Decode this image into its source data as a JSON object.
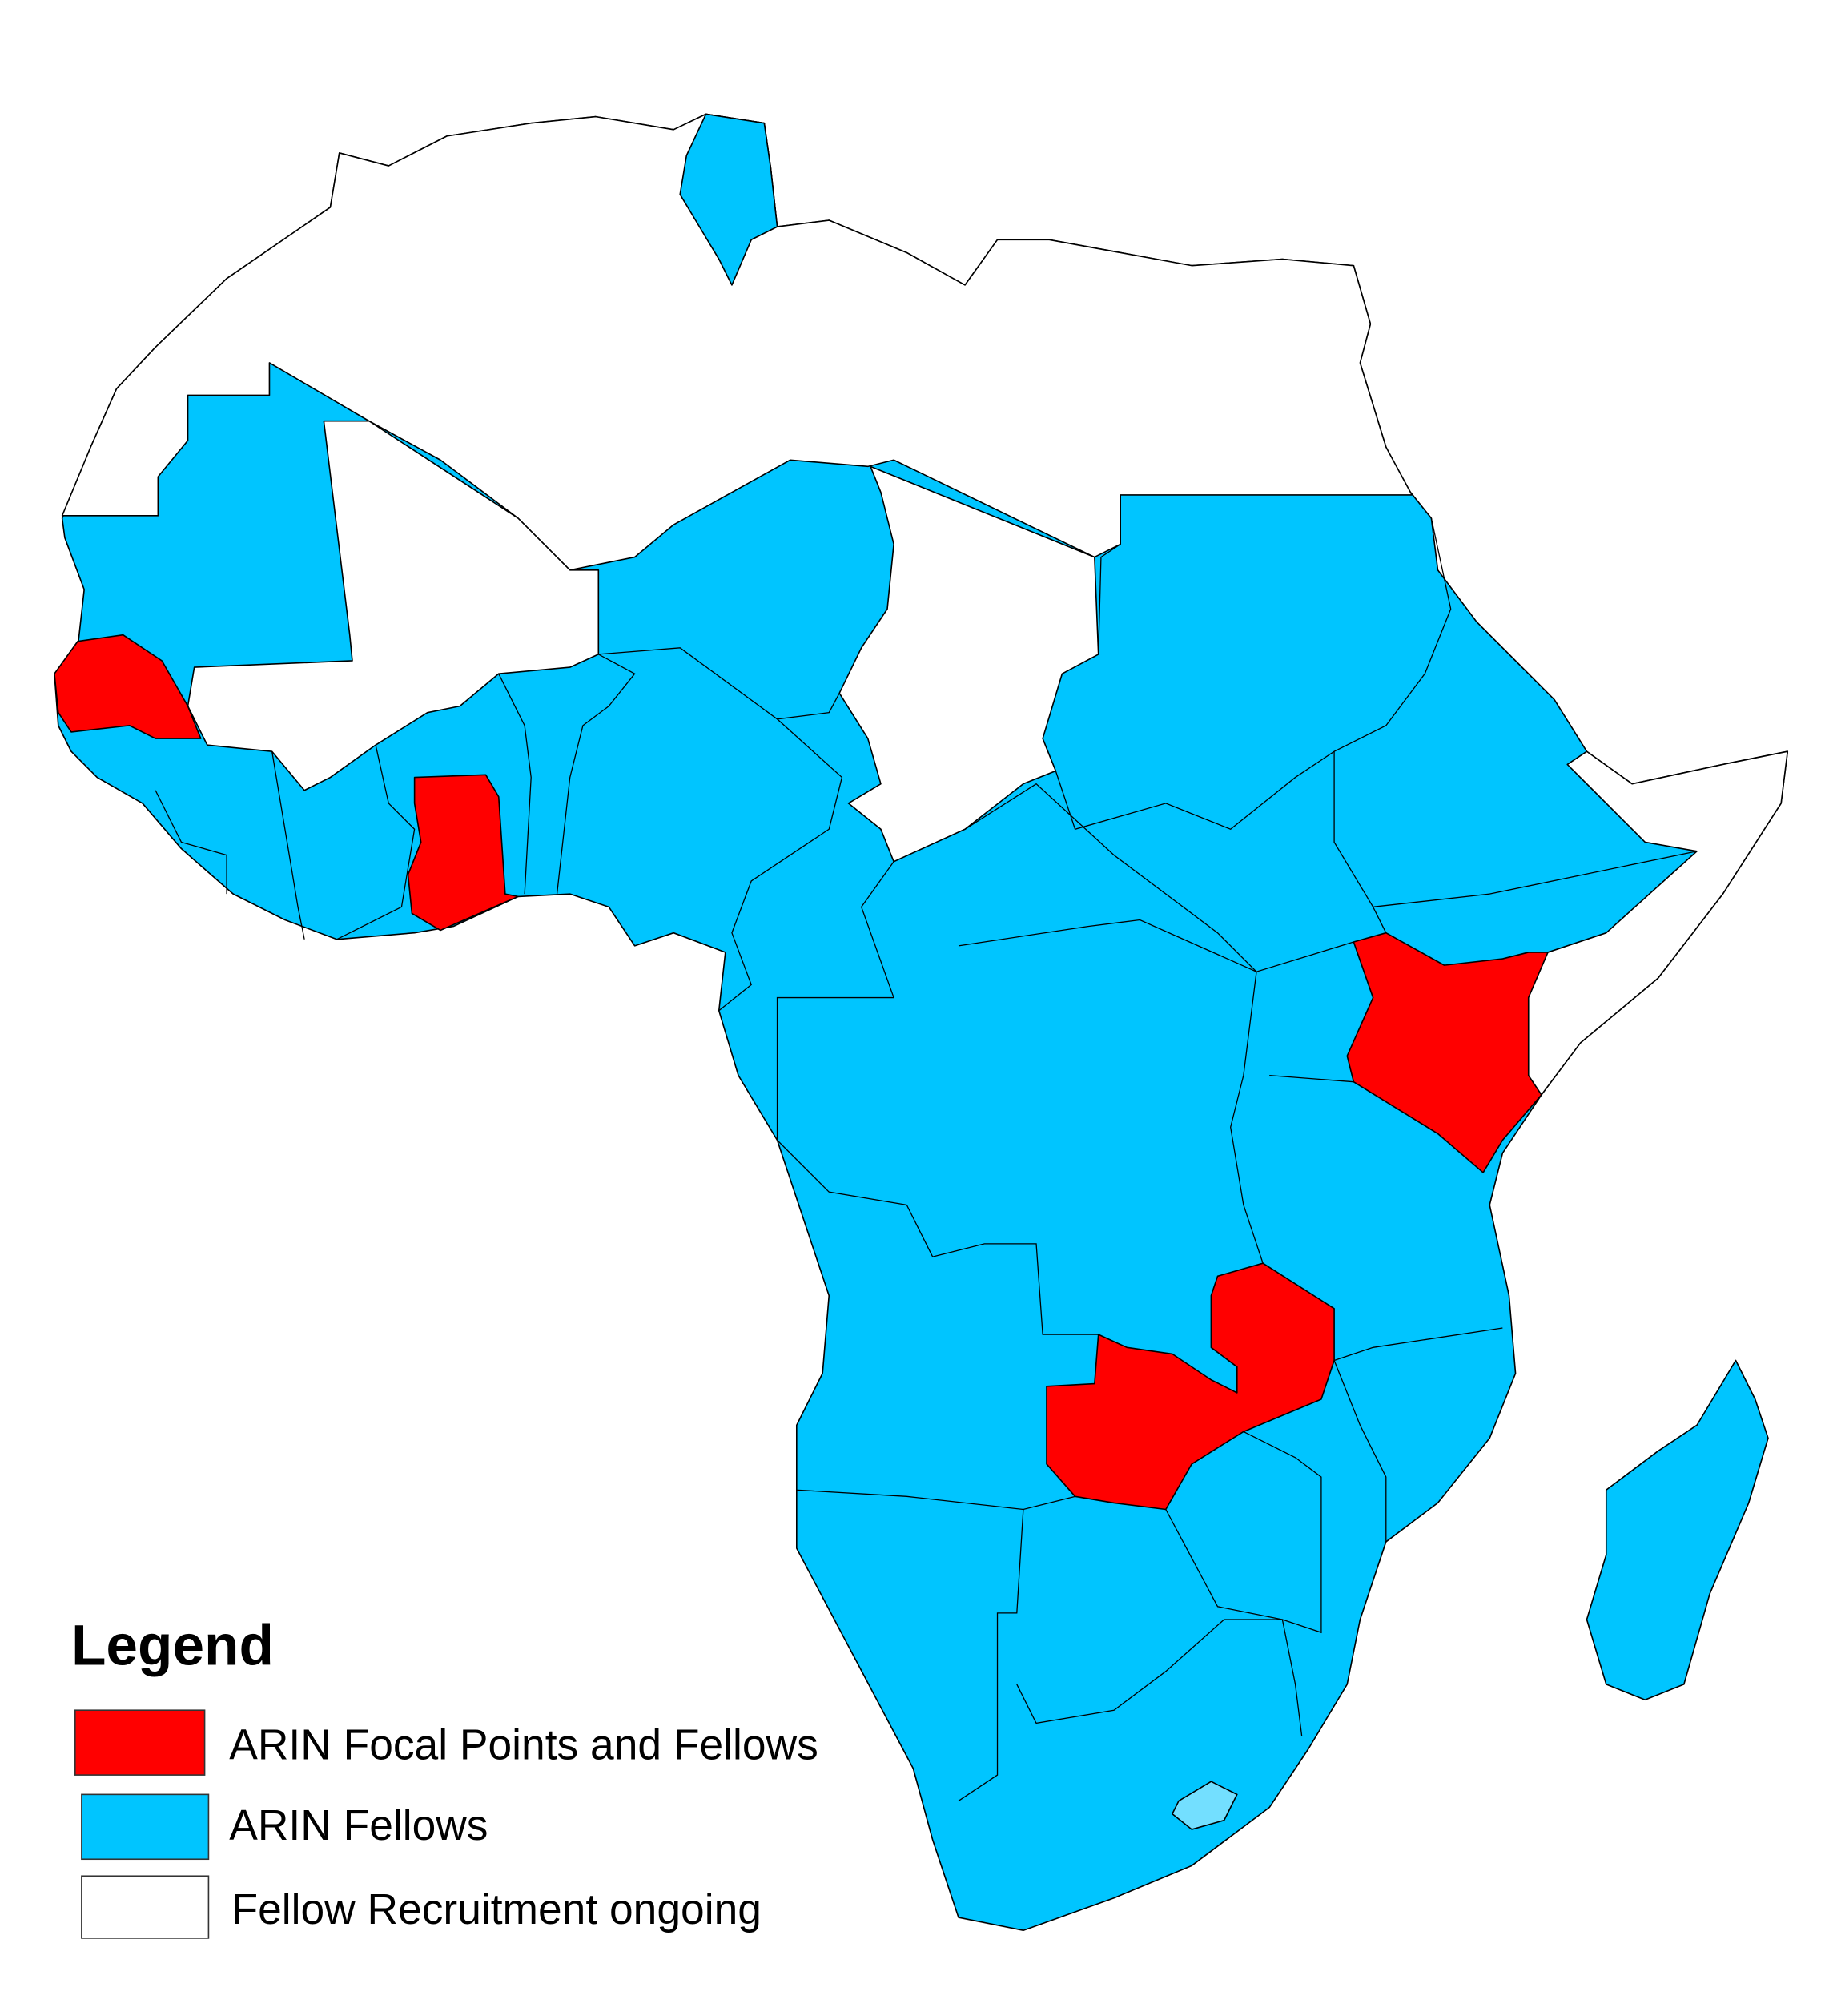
{
  "legend": {
    "title": "Legend",
    "items": [
      {
        "label": "ARIN Focal Points and Fellows",
        "color": "#ff0000"
      },
      {
        "label": "ARIN Fellows",
        "color": "#00c5ff"
      },
      {
        "label": "Fellow Recruitment ongoing",
        "color": "#ffffff"
      }
    ]
  },
  "colors": {
    "focal": "#ff0000",
    "fellows": "#00c5ff",
    "ongoing": "#ffffff",
    "lesotho": "#73dfff"
  }
}
